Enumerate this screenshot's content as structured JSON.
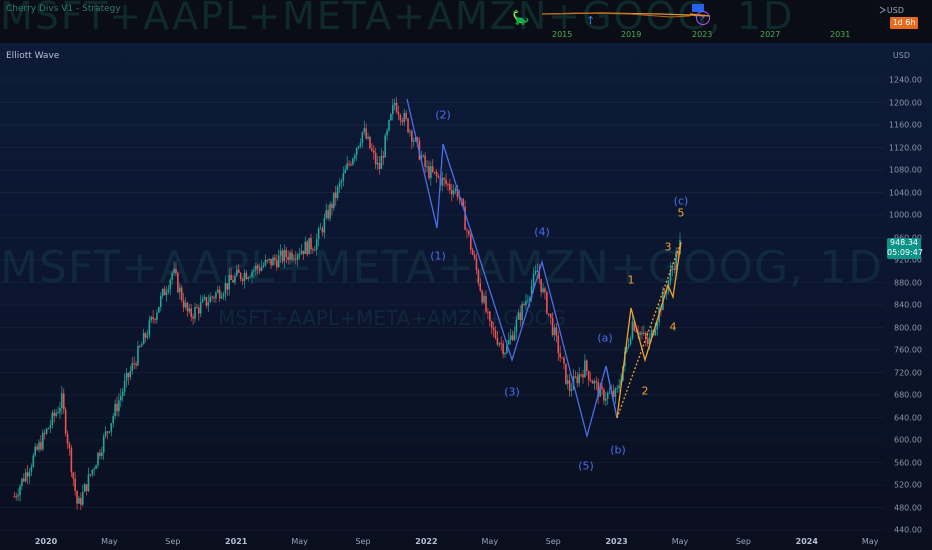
{
  "toolbar": {
    "study_title": "Cherry Divs V1 - Strategy",
    "currency": "USD",
    "timeframe_badge": "1d 6h",
    "mini_years": [
      "2015",
      "2019",
      "2023",
      "2027",
      "2031"
    ]
  },
  "pane": {
    "indicator": "Elliott Wave",
    "currency": "USD"
  },
  "symbol_watermark": "MSFT+AAPL+META+AMZN+GOOG, 1D",
  "symbol_watermark_small": "MSFT+AAPL+META+AMZN+GOOG",
  "last_price": {
    "value": "948.34",
    "countdown": "05:09:47"
  },
  "colors": {
    "up": "#26a69a",
    "down": "#ef5350",
    "wave_blue": "#4a6ee8",
    "wave_orange": "#f0a030",
    "price_tag": "#0d9488"
  },
  "chart_data": {
    "type": "candlestick",
    "title": "",
    "ylim": [
      440,
      1260
    ],
    "y_ticks": [
      1240,
      1200,
      1160,
      1120,
      1080,
      1040,
      1000,
      960,
      920,
      880,
      840,
      800,
      760,
      720,
      680,
      640,
      600,
      560,
      520,
      480,
      440
    ],
    "x_ticks": [
      "2020",
      "May",
      "Sep",
      "2021",
      "May",
      "Sep",
      "2022",
      "May",
      "Sep",
      "2023",
      "May",
      "Sep",
      "2024",
      "May"
    ],
    "approx_close_path": [
      {
        "x": "2019-11",
        "y": 500
      },
      {
        "x": "2020-02",
        "y": 670
      },
      {
        "x": "2020-03",
        "y": 480
      },
      {
        "x": "2020-06",
        "y": 700
      },
      {
        "x": "2020-09",
        "y": 900
      },
      {
        "x": "2020-10",
        "y": 820
      },
      {
        "x": "2021-01",
        "y": 890
      },
      {
        "x": "2021-06",
        "y": 950
      },
      {
        "x": "2021-09",
        "y": 1150
      },
      {
        "x": "2021-10",
        "y": 1080
      },
      {
        "x": "2021-11",
        "y": 1200
      },
      {
        "x": "2021-12",
        "y": 1150
      },
      {
        "x": "2022-01",
        "y": 1080
      },
      {
        "x": "2022-03",
        "y": 1040
      },
      {
        "x": "2022-05",
        "y": 800
      },
      {
        "x": "2022-06",
        "y": 760
      },
      {
        "x": "2022-08",
        "y": 900
      },
      {
        "x": "2022-10",
        "y": 690
      },
      {
        "x": "2022-11",
        "y": 730
      },
      {
        "x": "2022-12",
        "y": 680
      },
      {
        "x": "2023-01",
        "y": 680
      },
      {
        "x": "2023-02",
        "y": 810
      },
      {
        "x": "2023-03",
        "y": 770
      },
      {
        "x": "2023-05",
        "y": 948
      }
    ],
    "elliott_waves": [
      {
        "label": "(1)",
        "color": "blue"
      },
      {
        "label": "(2)",
        "color": "blue"
      },
      {
        "label": "(3)",
        "color": "blue"
      },
      {
        "label": "(4)",
        "color": "blue"
      },
      {
        "label": "(5)",
        "color": "blue"
      },
      {
        "label": "(a)",
        "color": "blue"
      },
      {
        "label": "(b)",
        "color": "blue"
      },
      {
        "label": "(c)",
        "color": "blue"
      },
      {
        "label": "1",
        "color": "orange"
      },
      {
        "label": "2",
        "color": "orange"
      },
      {
        "label": "3",
        "color": "orange"
      },
      {
        "label": "4",
        "color": "orange"
      },
      {
        "label": "5",
        "color": "orange"
      }
    ]
  }
}
